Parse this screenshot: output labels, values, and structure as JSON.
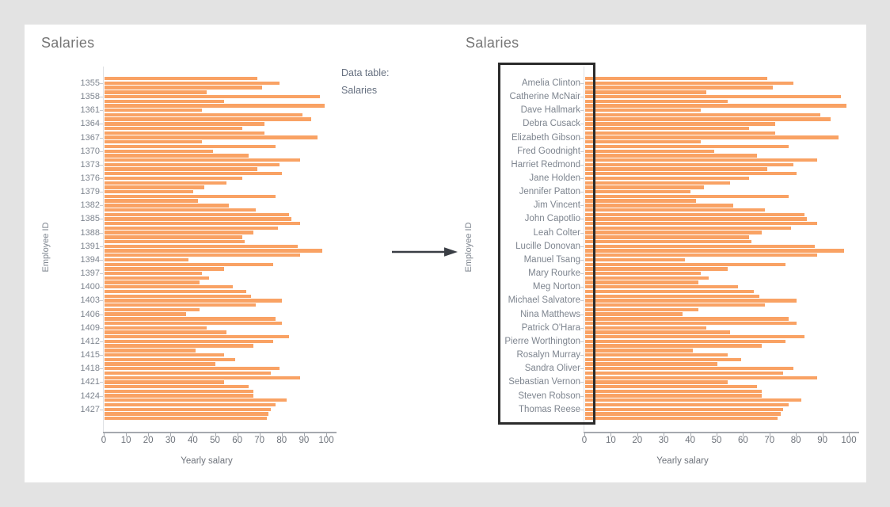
{
  "page": {
    "background_color": "#E3E3E3",
    "card_background_color": "#FFFFFF"
  },
  "annotation": {
    "line1": "Data table:",
    "line2": "Salaries"
  },
  "arrow": {
    "direction": "right",
    "color": "#3A3E45"
  },
  "highlight_box": {
    "border_color": "#2B2B2B",
    "purpose": "outlines the employee-name axis labels of the right chart"
  },
  "colors": {
    "bar": "#F9A264",
    "chart_title": "#757575",
    "axis_text": "#7E858F",
    "tick_text": "#6F747C",
    "axis_line": "#A5A9AF"
  },
  "chart_data": [
    {
      "type": "bar",
      "orientation": "horizontal",
      "title": "Salaries",
      "xlabel": "Yearly salary",
      "ylabel": "Employee ID",
      "xlim": [
        0,
        100
      ],
      "x_ticks": [
        0,
        10,
        20,
        30,
        40,
        50,
        60,
        70,
        80,
        90,
        100
      ],
      "grid": false,
      "legend": false,
      "categories": [
        "1355",
        "1358",
        "1361",
        "1364",
        "1367",
        "1370",
        "1373",
        "1376",
        "1379",
        "1382",
        "1385",
        "1388",
        "1391",
        "1394",
        "1397",
        "1400",
        "1403",
        "1406",
        "1409",
        "1412",
        "1415",
        "1418",
        "1421",
        "1424",
        "1427"
      ],
      "label_every_n_bars": 3,
      "label_bar_offset": 1,
      "values": [
        69,
        79,
        71,
        46,
        97,
        54,
        99,
        44,
        89,
        93,
        72,
        62,
        72,
        96,
        44,
        77,
        49,
        65,
        88,
        79,
        69,
        80,
        62,
        55,
        45,
        40,
        77,
        42,
        56,
        68,
        83,
        84,
        88,
        78,
        67,
        62,
        63,
        87,
        98,
        88,
        38,
        76,
        54,
        44,
        47,
        43,
        58,
        64,
        66,
        80,
        68,
        43,
        37,
        77,
        80,
        46,
        55,
        83,
        76,
        67,
        41,
        54,
        59,
        50,
        79,
        75,
        88,
        54,
        65,
        67,
        67,
        82,
        77,
        75,
        74,
        73
      ]
    },
    {
      "type": "bar",
      "orientation": "horizontal",
      "title": "Salaries",
      "xlabel": "Yearly salary",
      "ylabel": "Employee ID",
      "xlim": [
        0,
        100
      ],
      "x_ticks": [
        0,
        10,
        20,
        30,
        40,
        50,
        60,
        70,
        80,
        90,
        100
      ],
      "grid": false,
      "legend": false,
      "categories": [
        "Amelia Clinton",
        "Catherine McNair",
        "Dave Hallmark",
        "Debra Cusack",
        "Elizabeth Gibson",
        "Fred Goodnight",
        "Harriet Redmond",
        "Jane Holden",
        "Jennifer Patton",
        "Jim Vincent",
        "John Capotlio",
        "Leah Colter",
        "Lucille Donovan",
        "Manuel Tsang",
        "Mary Rourke",
        "Meg Norton",
        "Michael Salvatore",
        "Nina Matthews",
        "Patrick O'Hara",
        "Pierre Worthington",
        "Rosalyn Murray",
        "Sandra Oliver",
        "Sebastian Vernon",
        "Steven Robson",
        "Thomas Reese"
      ],
      "label_every_n_bars": 3,
      "label_bar_offset": 1,
      "values": [
        69,
        79,
        71,
        46,
        97,
        54,
        99,
        44,
        89,
        93,
        72,
        62,
        72,
        96,
        44,
        77,
        49,
        65,
        88,
        79,
        69,
        80,
        62,
        55,
        45,
        40,
        77,
        42,
        56,
        68,
        83,
        84,
        88,
        78,
        67,
        62,
        63,
        87,
        98,
        88,
        38,
        76,
        54,
        44,
        47,
        43,
        58,
        64,
        66,
        80,
        68,
        43,
        37,
        77,
        80,
        46,
        55,
        83,
        76,
        67,
        41,
        54,
        59,
        50,
        79,
        75,
        88,
        54,
        65,
        67,
        67,
        82,
        77,
        75,
        74,
        73
      ]
    }
  ]
}
